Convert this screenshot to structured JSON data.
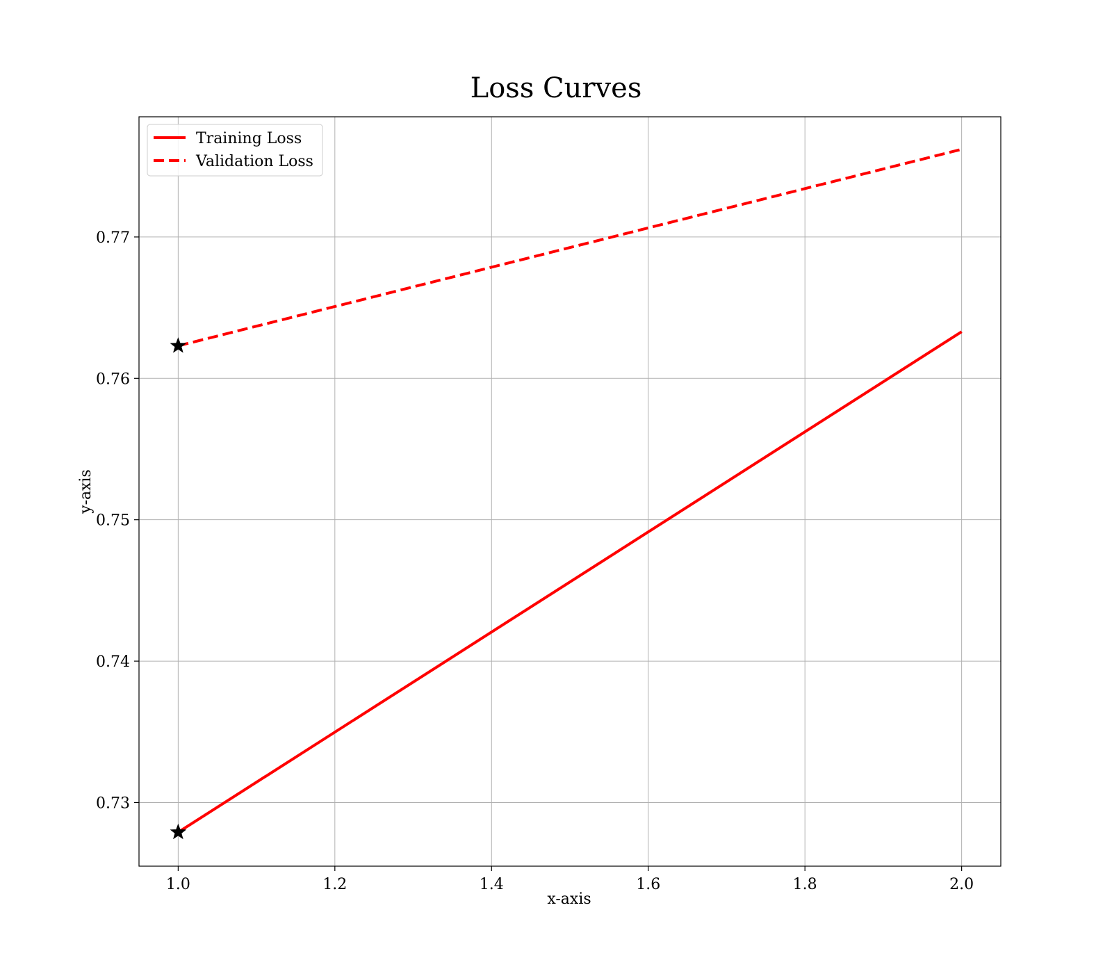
{
  "chart_data": {
    "type": "line",
    "title": "Loss Curves",
    "xlabel": "x-axis",
    "ylabel": "y-axis",
    "xlim": [
      0.95,
      2.05
    ],
    "ylim": [
      0.7255,
      0.7785
    ],
    "x_ticks": [
      1.0,
      1.2,
      1.4,
      1.6,
      1.8,
      2.0
    ],
    "x_tick_labels": [
      "1.0",
      "1.2",
      "1.4",
      "1.6",
      "1.8",
      "2.0"
    ],
    "y_ticks": [
      0.73,
      0.74,
      0.75,
      0.76,
      0.77
    ],
    "y_tick_labels": [
      "0.73",
      "0.74",
      "0.75",
      "0.76",
      "0.77"
    ],
    "grid": true,
    "legend_position": "top-left",
    "series": [
      {
        "name": "Training Loss",
        "x": [
          1.0,
          2.0
        ],
        "y": [
          0.7279,
          0.7633
        ],
        "color": "#ff0000",
        "line_style": "solid",
        "marker_at_min": true
      },
      {
        "name": "Validation Loss",
        "x": [
          1.0,
          2.0
        ],
        "y": [
          0.7623,
          0.7762
        ],
        "color": "#ff0000",
        "line_style": "dashed",
        "marker_at_min": true
      }
    ],
    "min_marker": {
      "shape": "star",
      "color": "#000000"
    }
  }
}
